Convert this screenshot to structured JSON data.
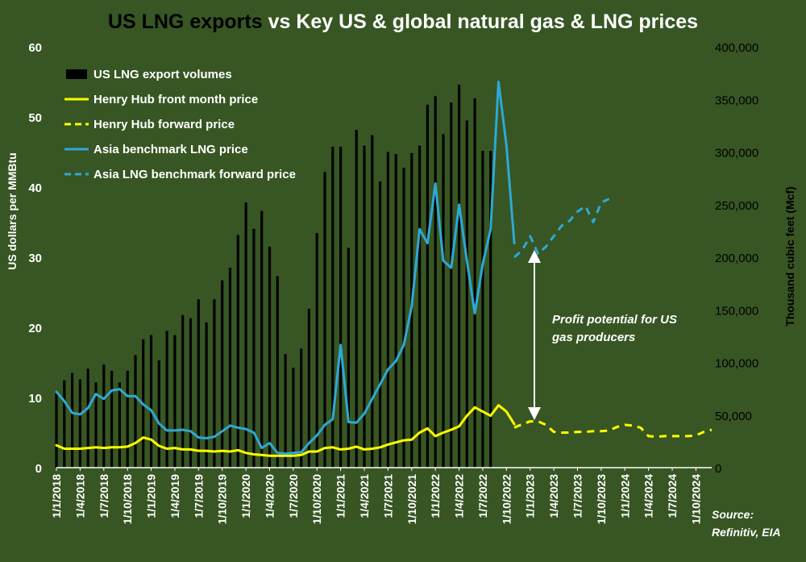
{
  "chart_data": {
    "type": "bar",
    "title_part1": "US LNG exports",
    "title_part2": " vs Key US & global natural gas & LNG prices",
    "ylabel_left": "US dollars per MMBtu",
    "ylabel_right": "Thousand cubic feet (Mcf)",
    "ylim_left": [
      0,
      60
    ],
    "ylim_right": [
      0,
      400000
    ],
    "left_ticks": [
      "0",
      "10",
      "20",
      "30",
      "40",
      "50",
      "60"
    ],
    "right_ticks": [
      "0",
      "50,000",
      "100,000",
      "150,000",
      "200,000",
      "250,000",
      "300,000",
      "350,000",
      "400,000"
    ],
    "x_tick_labels": [
      "1/1/2018",
      "1/4/2018",
      "1/7/2018",
      "1/10/2018",
      "1/1/2019",
      "1/4/2019",
      "1/7/2019",
      "1/10/2019",
      "1/1/2020",
      "1/4/2020",
      "1/7/2020",
      "1/10/2020",
      "1/1/2021",
      "1/4/2021",
      "1/7/2021",
      "1/10/2021",
      "1/1/2022",
      "1/4/2022",
      "1/7/2022",
      "1/10/2022",
      "1/1/2023",
      "1/4/2023",
      "1/7/2023",
      "1/10/2023",
      "1/1/2024",
      "1/4/2024",
      "1/7/2024",
      "1/10/2024"
    ],
    "legend": [
      {
        "label": "US LNG export volumes",
        "style": "bar",
        "color": "#000000"
      },
      {
        "label": "Henry Hub front month price",
        "style": "solid",
        "color": "#ffff00"
      },
      {
        "label": "Henry Hub forward price",
        "style": "dashed",
        "color": "#ffff00"
      },
      {
        "label": "Asia benchmark LNG price",
        "style": "solid",
        "color": "#2ea8d6"
      },
      {
        "label": "Asia LNG benchmark forward price",
        "style": "dashed",
        "color": "#2ea8d6"
      }
    ],
    "series": [
      {
        "name": "US LNG export volumes",
        "axis": "right",
        "kind": "bar",
        "start": "2018-01",
        "values": [
          71000,
          83000,
          90000,
          84000,
          94000,
          81000,
          98000,
          92000,
          81000,
          92000,
          107000,
          122000,
          126000,
          102000,
          130000,
          126000,
          145000,
          142000,
          160000,
          138000,
          160000,
          178000,
          190000,
          221000,
          252000,
          227000,
          244000,
          210000,
          182000,
          108000,
          95000,
          113000,
          151000,
          223000,
          281000,
          305000,
          305000,
          209000,
          321000,
          306000,
          316000,
          272000,
          300000,
          298000,
          285000,
          299000,
          306000,
          345000,
          353000,
          317000,
          347000,
          364000,
          330000,
          351000,
          301000,
          301000
        ]
      },
      {
        "name": "Henry Hub front month price",
        "axis": "left",
        "kind": "line",
        "start": "2018-01",
        "values": [
          3.2,
          2.7,
          2.7,
          2.7,
          2.8,
          2.9,
          2.8,
          2.9,
          2.9,
          3.0,
          3.5,
          4.3,
          4.0,
          3.1,
          2.7,
          2.8,
          2.6,
          2.6,
          2.4,
          2.4,
          2.3,
          2.4,
          2.3,
          2.5,
          2.1,
          1.9,
          1.8,
          1.7,
          1.7,
          1.7,
          1.7,
          1.8,
          2.3,
          2.3,
          2.8,
          2.9,
          2.6,
          2.7,
          3.0,
          2.6,
          2.7,
          2.9,
          3.3,
          3.6,
          3.9,
          4.0,
          5.0,
          5.6,
          4.5,
          5.0,
          5.4,
          5.9,
          7.4,
          8.6,
          8.0,
          7.4,
          8.9,
          8.0,
          6.2
        ]
      },
      {
        "name": "Henry Hub forward price",
        "axis": "left",
        "kind": "dashed",
        "start": "2022-11",
        "values": [
          5.7,
          6.2,
          6.6,
          6.6,
          6.1,
          5.1,
          5.0,
          5.0,
          5.1,
          5.1,
          5.2,
          5.2,
          5.3,
          5.8,
          6.1,
          6.0,
          5.7,
          4.5,
          4.4,
          4.5,
          4.5,
          4.5,
          4.5,
          4.6,
          5.1,
          5.4
        ]
      },
      {
        "name": "Asia benchmark LNG price",
        "axis": "left",
        "kind": "line",
        "start": "2018-01",
        "values": [
          10.8,
          9.5,
          7.8,
          7.6,
          8.5,
          10.5,
          9.8,
          11.0,
          11.2,
          10.2,
          10.2,
          9.0,
          8.2,
          6.3,
          5.3,
          5.3,
          5.4,
          5.2,
          4.3,
          4.2,
          4.4,
          5.2,
          6.0,
          5.7,
          5.5,
          5.0,
          2.8,
          3.5,
          2.1,
          2.0,
          2.1,
          2.2,
          3.5,
          4.6,
          6.1,
          6.9,
          17.5,
          6.5,
          6.4,
          7.7,
          9.8,
          11.9,
          14.0,
          15.2,
          17.5,
          23.0,
          34.0,
          32.0,
          40.5,
          29.5,
          28.5,
          37.5,
          29.5,
          22.0,
          29.0,
          34.0,
          55.0,
          46.0,
          32.0
        ]
      },
      {
        "name": "Asia LNG benchmark forward price",
        "axis": "left",
        "kind": "dashed",
        "start": "2022-11",
        "values": [
          30.0,
          31.0,
          33.0,
          30.5,
          31.5,
          33.0,
          34.5,
          35.2,
          36.5,
          37.3,
          35.0,
          37.8,
          38.3
        ]
      }
    ],
    "annotation": "Profit potential for US gas producers",
    "source": "Source: Refinitiv, EIA",
    "grid": false
  }
}
